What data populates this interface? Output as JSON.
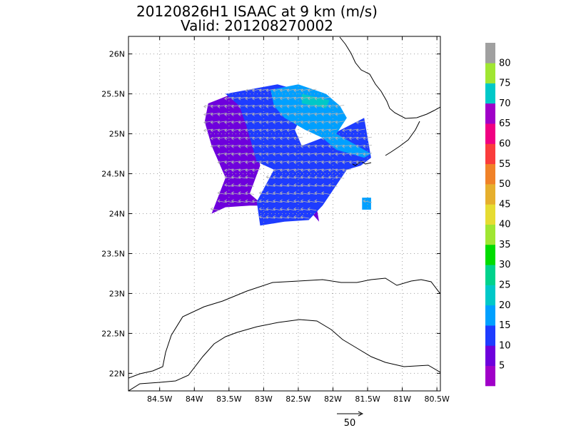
{
  "chart_data": {
    "type": "heatmap",
    "title_line1": "20120826H1 ISAAC at 9 km (m/s)",
    "title_line2": "Valid: 201208270002",
    "x_tick_labels": [
      "84.5W",
      "84W",
      "83.5W",
      "83W",
      "82.5W",
      "82W",
      "81.5W",
      "81W",
      "80.5W"
    ],
    "x_tick_values": [
      -84.5,
      -84.0,
      -83.5,
      -83.0,
      -82.5,
      -82.0,
      -81.5,
      -81.0,
      -80.5
    ],
    "y_tick_labels": [
      "22N",
      "22.5N",
      "23N",
      "23.5N",
      "24N",
      "24.5N",
      "25N",
      "25.5N",
      "26N"
    ],
    "y_tick_values": [
      22.0,
      22.5,
      23.0,
      23.5,
      24.0,
      24.5,
      25.0,
      25.5,
      26.0
    ],
    "xlim": [
      -84.95,
      -80.45
    ],
    "ylim": [
      21.78,
      26.22
    ],
    "grid": true,
    "colorbar_levels": [
      5,
      10,
      15,
      20,
      25,
      30,
      35,
      40,
      45,
      50,
      55,
      60,
      65,
      70,
      75,
      80
    ],
    "colorbar_labels": [
      "5",
      "10",
      "15",
      "20",
      "25",
      "30",
      "35",
      "40",
      "45",
      "50",
      "55",
      "60",
      "65",
      "70",
      "75",
      "80"
    ],
    "colorbar_colors": [
      "#a000c8",
      "#6e00dc",
      "#1e3cff",
      "#00a0ff",
      "#00c8c8",
      "#00d28c",
      "#00dc00",
      "#a0e632",
      "#e6dc32",
      "#e6af2d",
      "#f08228",
      "#fa3c3c",
      "#f00082",
      "#a000c8",
      "#00c8c8",
      "#a0e632",
      "#a0a0a0"
    ],
    "vector_scale_label": "50",
    "regions": [
      {
        "value": 5,
        "polygon": [
          [
            -83.8,
            25.38
          ],
          [
            -83.45,
            25.5
          ],
          [
            -83.2,
            25.35
          ],
          [
            -83.05,
            24.6
          ],
          [
            -83.2,
            24.25
          ],
          [
            -83.0,
            24.1
          ],
          [
            -82.6,
            24.25
          ],
          [
            -82.3,
            24.0
          ],
          [
            -82.2,
            23.9
          ],
          [
            -82.3,
            24.4
          ],
          [
            -82.6,
            24.35
          ],
          [
            -82.9,
            24.1
          ],
          [
            -83.2,
            24.1
          ],
          [
            -83.55,
            24.08
          ],
          [
            -83.75,
            24.0
          ],
          [
            -83.55,
            24.45
          ],
          [
            -83.75,
            24.85
          ],
          [
            -83.85,
            25.15
          ]
        ]
      },
      {
        "value": 12,
        "polygon": [
          [
            -83.55,
            25.5
          ],
          [
            -82.8,
            25.62
          ],
          [
            -82.3,
            25.5
          ],
          [
            -82.55,
            25.05
          ],
          [
            -82.45,
            24.85
          ],
          [
            -82.0,
            25.0
          ],
          [
            -81.55,
            25.2
          ],
          [
            -81.45,
            24.7
          ],
          [
            -81.6,
            24.6
          ],
          [
            -81.8,
            24.55
          ],
          [
            -82.15,
            24.1
          ],
          [
            -82.35,
            23.92
          ],
          [
            -82.7,
            23.9
          ],
          [
            -83.05,
            23.85
          ],
          [
            -83.1,
            24.15
          ],
          [
            -82.85,
            24.55
          ],
          [
            -83.1,
            24.65
          ],
          [
            -83.25,
            25.1
          ],
          [
            -83.35,
            25.35
          ]
        ]
      },
      {
        "value": 17,
        "polygon": [
          [
            -82.9,
            25.55
          ],
          [
            -82.5,
            25.62
          ],
          [
            -82.1,
            25.5
          ],
          [
            -81.9,
            25.35
          ],
          [
            -81.8,
            25.2
          ],
          [
            -81.95,
            25.0
          ],
          [
            -81.65,
            24.85
          ],
          [
            -81.45,
            24.75
          ],
          [
            -81.55,
            24.7
          ],
          [
            -81.95,
            24.8
          ],
          [
            -82.15,
            24.95
          ],
          [
            -82.4,
            25.05
          ],
          [
            -82.7,
            25.2
          ],
          [
            -82.85,
            25.35
          ]
        ]
      },
      {
        "value": 17,
        "polygon": [
          [
            -81.58,
            24.2
          ],
          [
            -81.45,
            24.2
          ],
          [
            -81.45,
            24.05
          ],
          [
            -81.58,
            24.05
          ]
        ]
      },
      {
        "value": 22,
        "polygon": [
          [
            -82.45,
            25.5
          ],
          [
            -82.05,
            25.42
          ],
          [
            -82.1,
            25.32
          ],
          [
            -82.45,
            25.38
          ]
        ]
      }
    ]
  }
}
